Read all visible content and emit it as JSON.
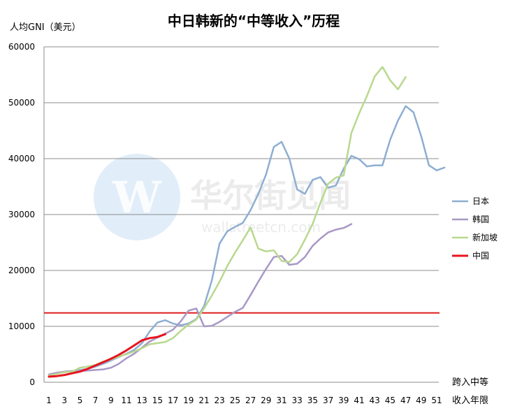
{
  "chart_data": {
    "type": "line",
    "title": "中日韩新的“中等收入”历程",
    "ylabel": "人均GNI（美元）",
    "xlabel_lines": [
      "跨入中等",
      "收入年限"
    ],
    "ylim": [
      0,
      60000
    ],
    "xlim": [
      1,
      52
    ],
    "yticks": [
      0,
      10000,
      20000,
      30000,
      40000,
      50000,
      60000
    ],
    "yticks_labels": [
      "0",
      "10000",
      "20000",
      "30000",
      "40000",
      "50000",
      "60000"
    ],
    "xticks": [
      1,
      3,
      5,
      7,
      9,
      11,
      13,
      15,
      17,
      19,
      21,
      23,
      25,
      27,
      29,
      31,
      33,
      35,
      37,
      39,
      41,
      43,
      45,
      47,
      49,
      51
    ],
    "xticks_labels": [
      "1",
      "3",
      "5",
      "7",
      "9",
      "11",
      "13",
      "15",
      "17",
      "19",
      "21",
      "23",
      "25",
      "27",
      "29",
      "31",
      "33",
      "35",
      "37",
      "39",
      "41",
      "43",
      "45",
      "47",
      "49",
      "51"
    ],
    "grid": true,
    "legend_position": "right",
    "reference_line": {
      "y": 12400,
      "color": "#e02020"
    },
    "watermark": {
      "text": "华尔街见闻",
      "sub": "wallstreetcn.com",
      "logo_letter": "W"
    },
    "series": [
      {
        "name": "日本",
        "color": "#8eaed1",
        "x": [
          1,
          2,
          3,
          4,
          5,
          6,
          7,
          8,
          9,
          10,
          11,
          12,
          13,
          14,
          15,
          16,
          17,
          18,
          19,
          20,
          21,
          22,
          23,
          24,
          25,
          26,
          27,
          28,
          29,
          30,
          31,
          32,
          33,
          34,
          35,
          36,
          37,
          38,
          39,
          40,
          41,
          42,
          43,
          44,
          45,
          46,
          47,
          48,
          49,
          50,
          51,
          52
        ],
        "y": [
          1300,
          1600,
          1900,
          2000,
          2200,
          2400,
          2800,
          3300,
          3900,
          4500,
          5100,
          5800,
          7000,
          9100,
          10700,
          11100,
          10500,
          10200,
          10500,
          11300,
          13600,
          18200,
          24800,
          27000,
          27800,
          28500,
          30800,
          33700,
          37200,
          42100,
          43000,
          40000,
          34500,
          33700,
          36200,
          36700,
          34800,
          35200,
          38200,
          40500,
          39900,
          38600,
          38800,
          38800,
          43400,
          46800,
          49400,
          48300,
          44000,
          38800,
          37900,
          38400
        ]
      },
      {
        "name": "韩国",
        "color": "#a898c6",
        "x": [
          1,
          2,
          3,
          4,
          5,
          6,
          7,
          8,
          9,
          10,
          11,
          12,
          13,
          14,
          15,
          16,
          17,
          18,
          19,
          20,
          21,
          22,
          23,
          24,
          25,
          26,
          27,
          28,
          29,
          30,
          31,
          32,
          33,
          34,
          35,
          36,
          37,
          38,
          39,
          40
        ],
        "y": [
          1400,
          1700,
          1900,
          2000,
          2000,
          2100,
          2200,
          2300,
          2600,
          3300,
          4300,
          5100,
          6200,
          7300,
          8000,
          8700,
          9400,
          10900,
          12800,
          13200,
          10000,
          10100,
          10800,
          11700,
          12600,
          13300,
          15600,
          18000,
          20300,
          22400,
          22600,
          21000,
          21200,
          22400,
          24400,
          25700,
          26800,
          27300,
          27600,
          28300
        ]
      },
      {
        "name": "新加坡",
        "color": "#b9d88e",
        "x": [
          1,
          2,
          3,
          4,
          5,
          6,
          7,
          8,
          9,
          10,
          11,
          12,
          13,
          14,
          15,
          16,
          17,
          18,
          19,
          20,
          21,
          22,
          23,
          24,
          25,
          26,
          27,
          28,
          29,
          30,
          31,
          32,
          33,
          34,
          35,
          36,
          37,
          38,
          39,
          40,
          41,
          42,
          43,
          44,
          45,
          46,
          47
        ],
        "y": [
          1200,
          1500,
          1800,
          1900,
          2600,
          2800,
          3100,
          3700,
          4100,
          4600,
          5000,
          5500,
          6100,
          6800,
          7000,
          7200,
          7900,
          9200,
          10300,
          11200,
          13200,
          15500,
          18000,
          20800,
          23200,
          25400,
          27700,
          23900,
          23400,
          23600,
          21700,
          21500,
          22900,
          25500,
          28300,
          32100,
          35500,
          36600,
          37000,
          44600,
          48100,
          51200,
          54700,
          56400,
          54000,
          52400,
          54600
        ]
      },
      {
        "name": "中国",
        "color": "#e8141e",
        "x": [
          1,
          2,
          3,
          4,
          5,
          6,
          7,
          8,
          9,
          10,
          11,
          12,
          13,
          14,
          15,
          16
        ],
        "y": [
          1000,
          1100,
          1300,
          1600,
          1900,
          2400,
          3000,
          3600,
          4200,
          4900,
          5700,
          6600,
          7500,
          7900,
          8100,
          8600
        ]
      }
    ]
  }
}
